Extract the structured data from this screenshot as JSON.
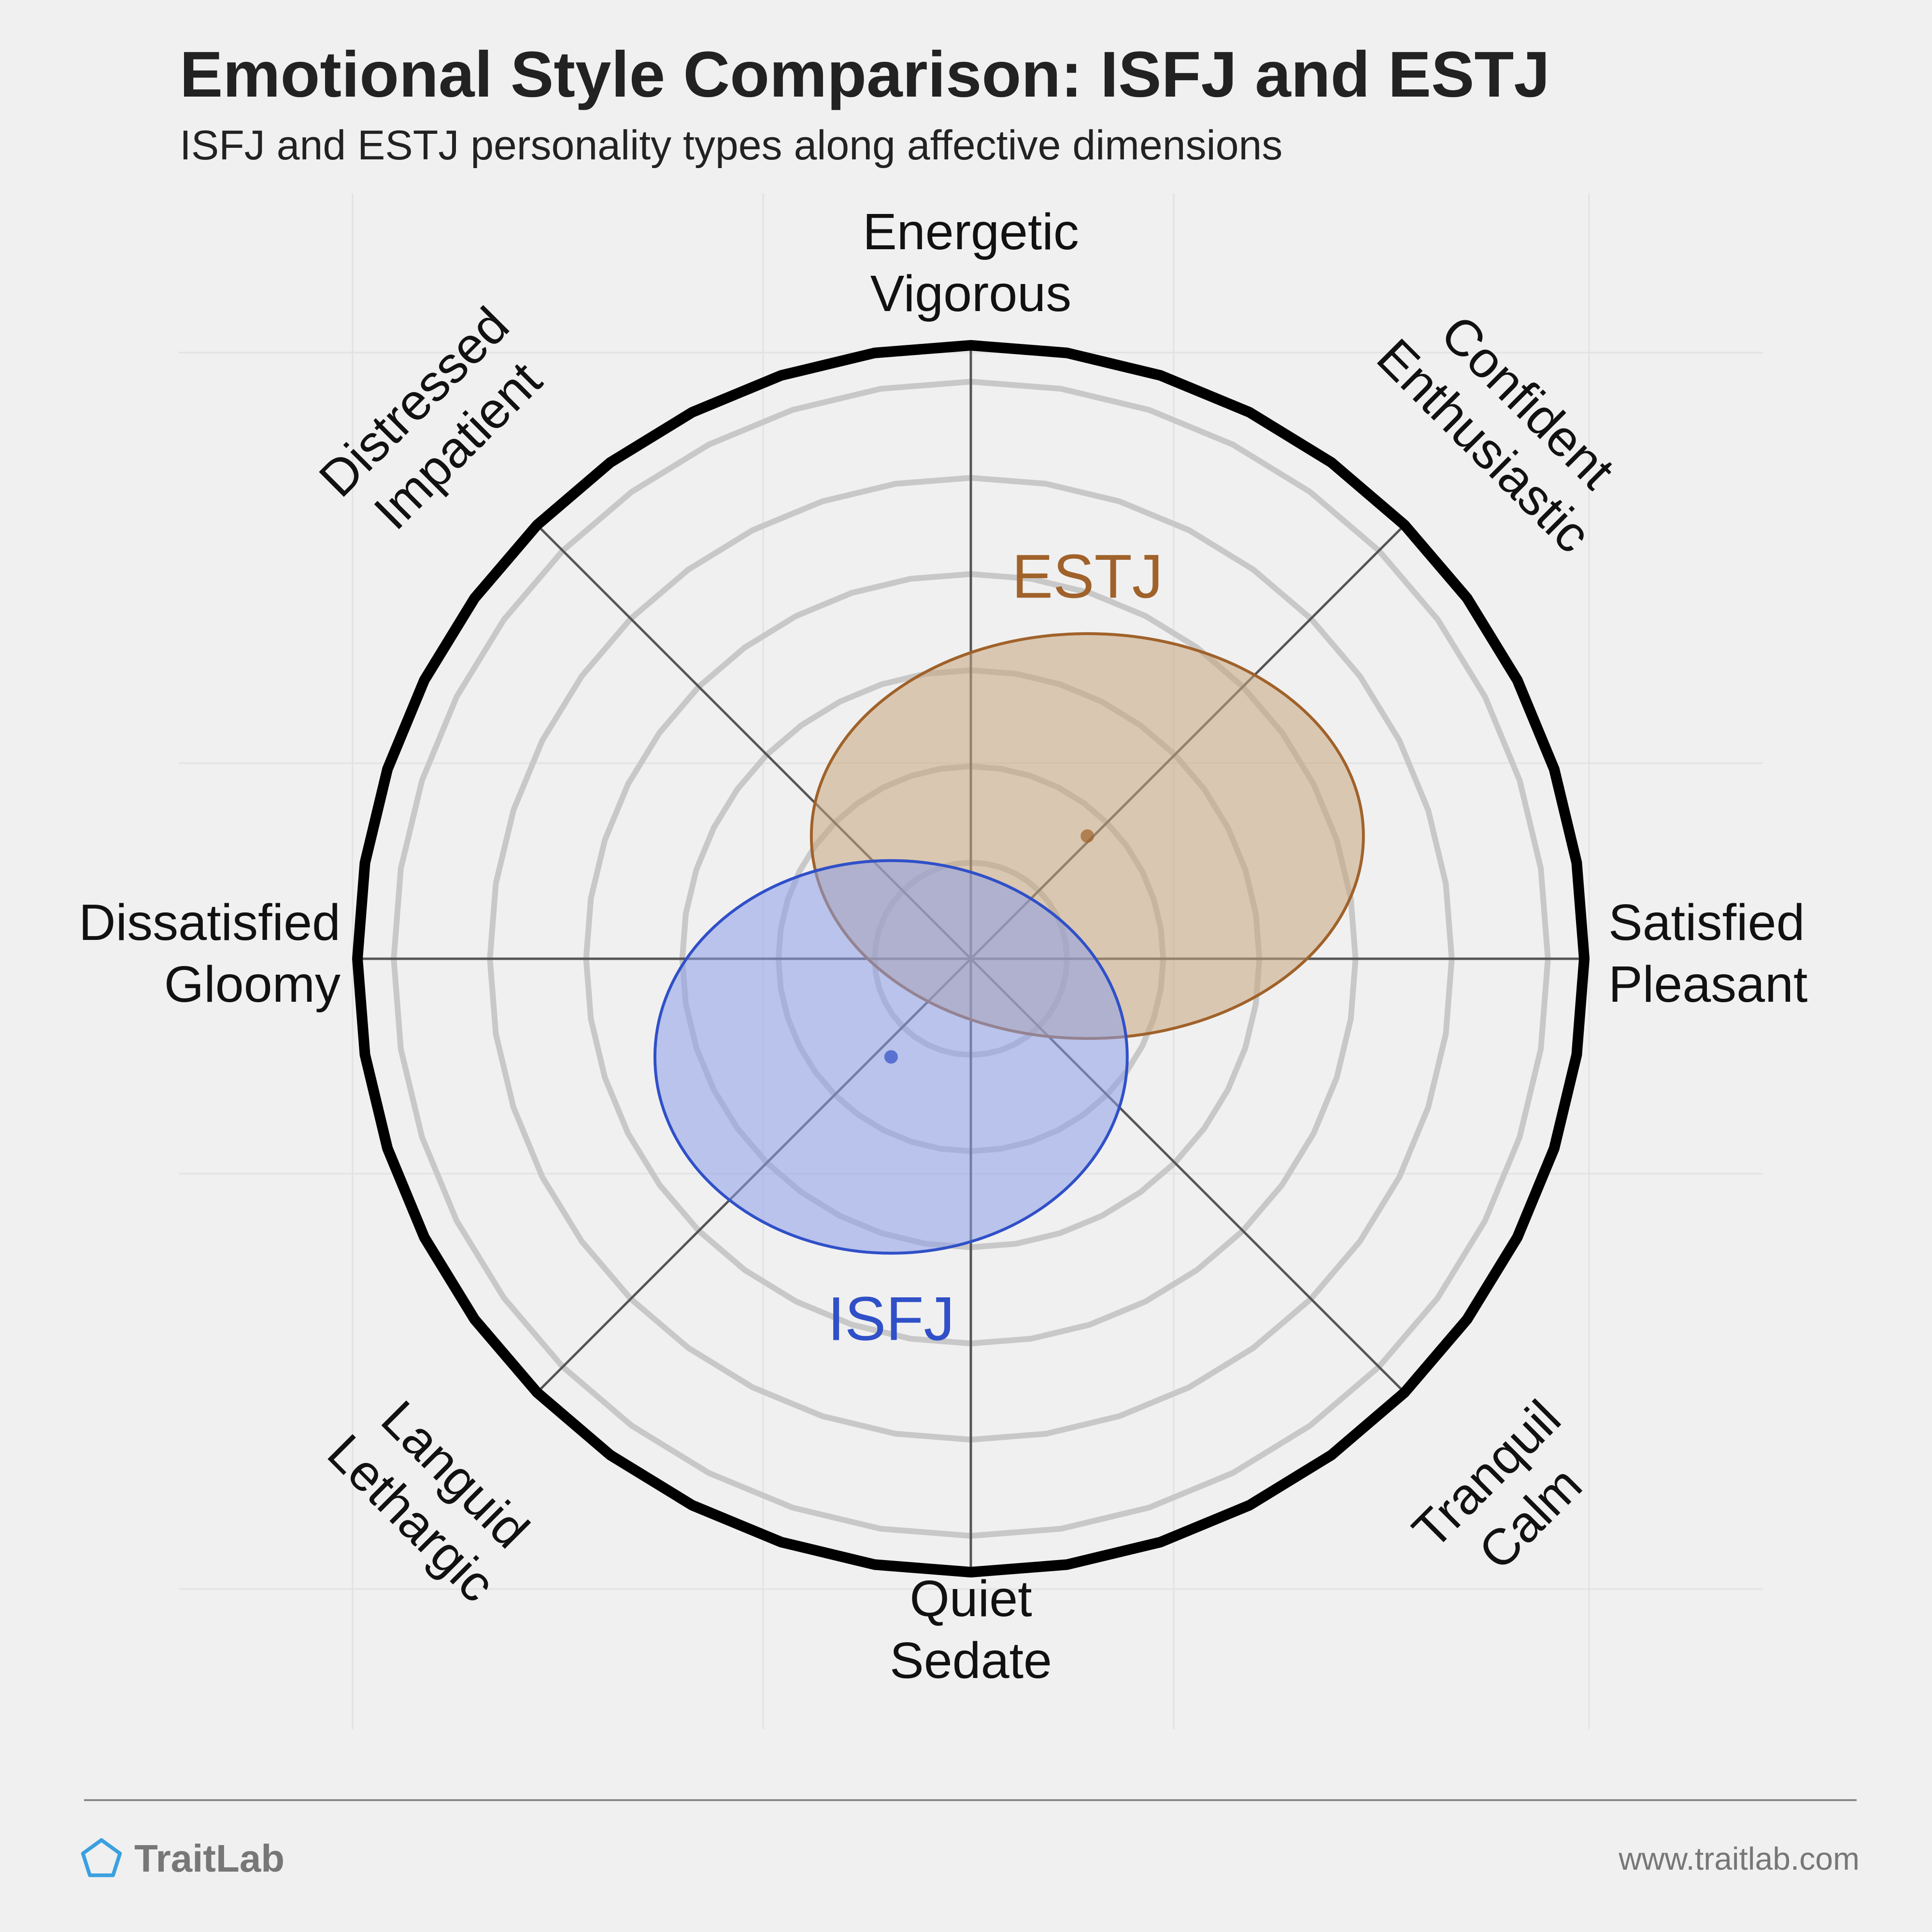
{
  "title": "Emotional Style Comparison: ISFJ and ESTJ",
  "subtitle": "ISFJ and ESTJ personality types along affective dimensions",
  "footer": {
    "brand": "TraitLab",
    "website": "www.traitlab.com"
  },
  "chart_data": {
    "type": "scatter",
    "chart_kind": "circumplex",
    "range": [
      -1,
      1
    ],
    "rings": 6,
    "axes": [
      {
        "angle": 90,
        "line1": "Energetic",
        "line2": "Vigorous"
      },
      {
        "angle": 45,
        "line1": "Confident",
        "line2": "Enthusiastic"
      },
      {
        "angle": 0,
        "line1": "Satisfied",
        "line2": "Pleasant"
      },
      {
        "angle": -45,
        "line1": "Tranquil",
        "line2": "Calm"
      },
      {
        "angle": -90,
        "line1": "Quiet",
        "line2": "Sedate"
      },
      {
        "angle": 225,
        "line1": "Languid",
        "line2": "Lethargic"
      },
      {
        "angle": 180,
        "line1": "Dissatisfied",
        "line2": "Gloomy"
      },
      {
        "angle": 135,
        "line1": "Distressed",
        "line2": "Impatient"
      }
    ],
    "series": [
      {
        "name": "ESTJ",
        "x": 0.19,
        "y": 0.2,
        "rx": 0.45,
        "ry": 0.33,
        "color": "#a0622a",
        "fill": "#c9a57d",
        "label_x": 0.19,
        "label_y": 0.62
      },
      {
        "name": "ISFJ",
        "x": -0.13,
        "y": -0.16,
        "rx": 0.385,
        "ry": 0.32,
        "color": "#3050c8",
        "fill": "#8c9ee8",
        "label_x": -0.13,
        "label_y": -0.59
      }
    ]
  }
}
